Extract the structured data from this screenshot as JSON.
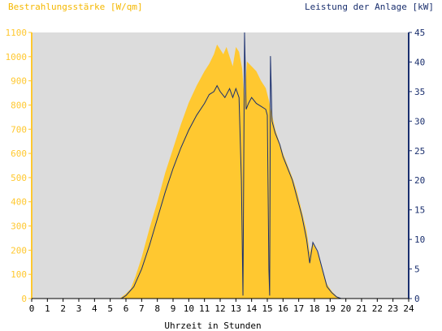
{
  "chart_data": {
    "type": "area",
    "title_left": "Bestrahlungsstärke [W/qm]",
    "title_right": "Leistung der Anlage [kW]",
    "xlabel": "Uhrzeit in Stunden",
    "xlim": [
      0,
      24
    ],
    "ylim_left": [
      0,
      1100
    ],
    "ylim_right": [
      0,
      45
    ],
    "x_ticks": [
      "0",
      "1",
      "2",
      "3",
      "4",
      "5",
      "6",
      "7",
      "8",
      "9",
      "10",
      "11",
      "12",
      "13",
      "14",
      "15",
      "16",
      "17",
      "18",
      "19",
      "20",
      "21",
      "22",
      "23",
      "24"
    ],
    "y_left_ticks": [
      "0",
      "100",
      "200",
      "300",
      "400",
      "500",
      "600",
      "700",
      "800",
      "900",
      "1000",
      "1100"
    ],
    "y_right_ticks": [
      "0",
      "5",
      "10",
      "15",
      "20",
      "25",
      "30",
      "35",
      "40",
      "45"
    ],
    "grid": false,
    "colors": {
      "plot_bg": "#dcdcdc",
      "irradiance": "#ffc830",
      "power": "#1a2f6e",
      "left_axis": "#ffc830",
      "right_axis": "#1a2f6e"
    },
    "series": [
      {
        "name": "Bestrahlungsstärke [W/qm]",
        "axis": "left",
        "points": [
          [
            0,
            0
          ],
          [
            5.6,
            0
          ],
          [
            5.8,
            10
          ],
          [
            6.0,
            20
          ],
          [
            6.3,
            40
          ],
          [
            6.6,
            90
          ],
          [
            7.0,
            170
          ],
          [
            7.5,
            290
          ],
          [
            8.0,
            400
          ],
          [
            8.5,
            520
          ],
          [
            9.0,
            620
          ],
          [
            9.5,
            720
          ],
          [
            10.0,
            810
          ],
          [
            10.5,
            880
          ],
          [
            11.0,
            940
          ],
          [
            11.3,
            970
          ],
          [
            11.6,
            1010
          ],
          [
            11.8,
            1050
          ],
          [
            12.0,
            1030
          ],
          [
            12.2,
            1010
          ],
          [
            12.4,
            1040
          ],
          [
            12.6,
            1000
          ],
          [
            12.8,
            960
          ],
          [
            13.0,
            1040
          ],
          [
            13.2,
            1020
          ],
          [
            13.4,
            950
          ],
          [
            13.55,
            820
          ],
          [
            13.7,
            980
          ],
          [
            14.0,
            960
          ],
          [
            14.3,
            940
          ],
          [
            14.6,
            900
          ],
          [
            14.9,
            870
          ],
          [
            15.1,
            820
          ],
          [
            15.3,
            760
          ],
          [
            15.5,
            700
          ],
          [
            15.8,
            640
          ],
          [
            16.0,
            600
          ],
          [
            16.3,
            550
          ],
          [
            16.6,
            500
          ],
          [
            16.9,
            440
          ],
          [
            17.2,
            360
          ],
          [
            17.5,
            280
          ],
          [
            17.7,
            190
          ],
          [
            17.9,
            230
          ],
          [
            18.2,
            190
          ],
          [
            18.5,
            120
          ],
          [
            18.8,
            60
          ],
          [
            19.1,
            30
          ],
          [
            19.4,
            10
          ],
          [
            19.7,
            0
          ],
          [
            24,
            0
          ]
        ]
      },
      {
        "name": "Leistung der Anlage [kW]",
        "axis": "right",
        "points": [
          [
            0,
            0
          ],
          [
            5.7,
            0
          ],
          [
            6.0,
            0.5
          ],
          [
            6.5,
            2
          ],
          [
            7.0,
            5
          ],
          [
            7.5,
            9
          ],
          [
            8.0,
            13.5
          ],
          [
            8.5,
            18
          ],
          [
            9.0,
            22
          ],
          [
            9.5,
            25.5
          ],
          [
            10.0,
            28.5
          ],
          [
            10.5,
            31
          ],
          [
            11.0,
            33
          ],
          [
            11.3,
            34.5
          ],
          [
            11.6,
            35
          ],
          [
            11.8,
            36
          ],
          [
            12.0,
            35
          ],
          [
            12.3,
            34
          ],
          [
            12.6,
            35.5
          ],
          [
            12.8,
            34
          ],
          [
            13.0,
            35.5
          ],
          [
            13.2,
            34
          ],
          [
            13.35,
            20
          ],
          [
            13.45,
            0.5
          ],
          [
            13.55,
            45
          ],
          [
            13.65,
            32
          ],
          [
            13.8,
            33
          ],
          [
            14.0,
            34
          ],
          [
            14.3,
            33
          ],
          [
            14.6,
            32.5
          ],
          [
            14.9,
            32
          ],
          [
            15.0,
            31
          ],
          [
            15.1,
            5
          ],
          [
            15.15,
            0.5
          ],
          [
            15.2,
            41
          ],
          [
            15.3,
            30
          ],
          [
            15.5,
            28
          ],
          [
            15.8,
            26
          ],
          [
            16.0,
            24
          ],
          [
            16.3,
            22
          ],
          [
            16.6,
            20
          ],
          [
            16.9,
            17
          ],
          [
            17.2,
            14
          ],
          [
            17.5,
            10
          ],
          [
            17.7,
            6
          ],
          [
            17.9,
            9.5
          ],
          [
            18.2,
            8
          ],
          [
            18.5,
            5
          ],
          [
            18.8,
            2
          ],
          [
            19.1,
            1
          ],
          [
            19.4,
            0.3
          ],
          [
            19.7,
            0
          ],
          [
            24,
            0
          ]
        ]
      }
    ]
  }
}
